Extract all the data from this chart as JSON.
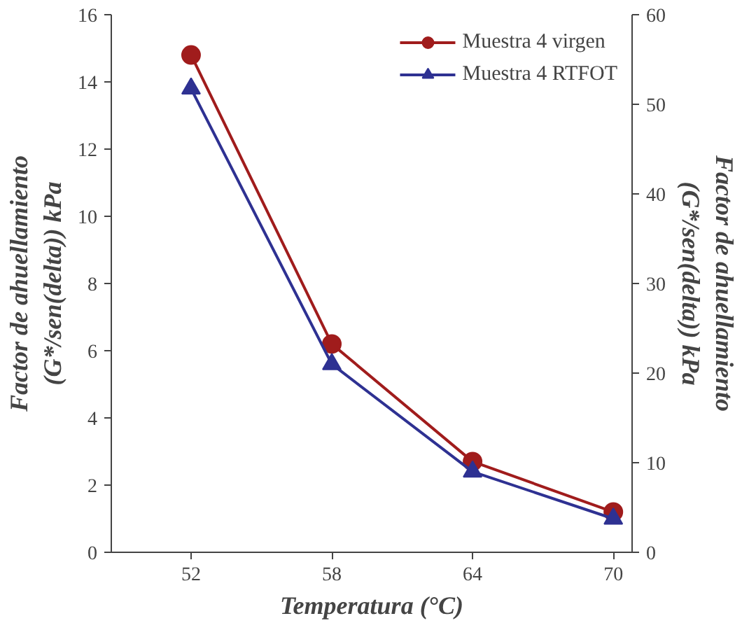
{
  "chart_data": {
    "type": "line",
    "xlabel": "Temperatura (°C)",
    "ylabel": "Factor de ahuellamiento\n(G*/sen(delta)) kPa",
    "y2label": "Factor de ahuellamiento\n(G*/sen(delta)) kPa",
    "x": [
      52,
      58,
      64,
      70
    ],
    "xlim": [
      48.6,
      70.8
    ],
    "xticks": [
      52,
      58,
      64,
      70
    ],
    "ylim": [
      0,
      16
    ],
    "yticks": [
      0,
      2,
      4,
      6,
      8,
      10,
      12,
      14,
      16
    ],
    "y2lim": [
      0,
      60
    ],
    "y2ticks": [
      0,
      10,
      20,
      30,
      40,
      50,
      60
    ],
    "series": [
      {
        "name": "Muestra 4 virgen",
        "color": "#a01c1c",
        "marker": "circle",
        "values": [
          14.8,
          6.2,
          2.7,
          1.2
        ]
      },
      {
        "name": "Muestra 4 RTFOT",
        "color": "#2e3192",
        "marker": "triangle",
        "values": [
          13.8,
          5.6,
          2.4,
          1.0
        ]
      }
    ],
    "grid": false,
    "legend": "top right",
    "line_style": "solid"
  }
}
